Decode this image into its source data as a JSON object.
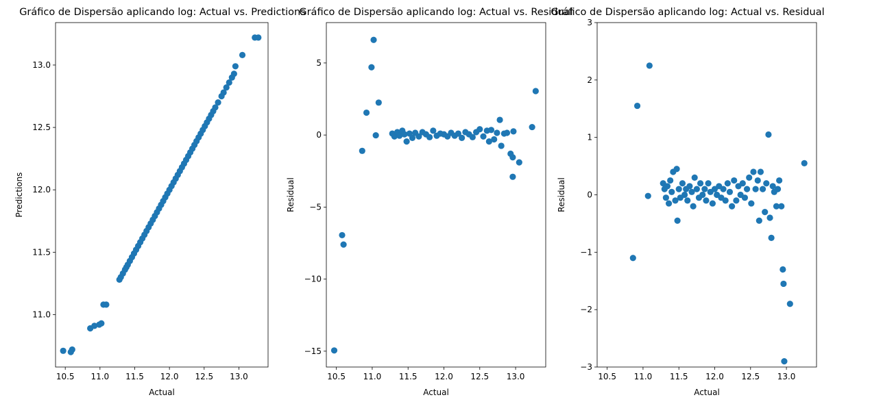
{
  "colors": {
    "marker": "#1f77b4",
    "axes": "#000000",
    "background": "#ffffff"
  },
  "chart_data": [
    {
      "type": "scatter",
      "title": "Gráfico de Dispersão aplicando log: Actual vs. Predictions",
      "xlabel": "Actual",
      "ylabel": "Predictions",
      "xlim": [
        10.36,
        13.42
      ],
      "ylim": [
        10.58,
        13.34
      ],
      "xticks": [
        10.5,
        11.0,
        11.5,
        12.0,
        12.5,
        13.0
      ],
      "xtick_labels": [
        "10.5",
        "11.0",
        "11.5",
        "12.0",
        "12.5",
        "13.0"
      ],
      "yticks": [
        11.0,
        11.5,
        12.0,
        12.5,
        13.0
      ],
      "ytick_labels": [
        "11.0",
        "11.5",
        "12.0",
        "12.5",
        "13.0"
      ],
      "x": [
        10.47,
        10.58,
        10.6,
        10.86,
        10.92,
        10.99,
        11.02,
        11.05,
        11.09,
        11.28,
        11.3,
        11.33,
        11.36,
        11.38,
        11.4,
        11.43,
        11.46,
        11.49,
        11.52,
        11.55,
        11.58,
        11.61,
        11.64,
        11.67,
        11.7,
        11.73,
        11.76,
        11.79,
        11.82,
        11.85,
        11.88,
        11.91,
        11.94,
        11.97,
        12.0,
        12.03,
        12.06,
        12.09,
        12.12,
        12.15,
        12.18,
        12.21,
        12.24,
        12.27,
        12.3,
        12.33,
        12.36,
        12.39,
        12.42,
        12.45,
        12.48,
        12.51,
        12.54,
        12.57,
        12.6,
        12.63,
        12.66,
        12.7,
        12.75,
        12.78,
        12.82,
        12.86,
        12.9,
        12.93,
        12.95,
        13.05,
        13.23,
        13.28
      ],
      "y": [
        10.71,
        10.7,
        10.72,
        10.89,
        10.91,
        10.92,
        10.93,
        11.08,
        11.08,
        11.28,
        11.3,
        11.33,
        11.36,
        11.38,
        11.4,
        11.43,
        11.46,
        11.49,
        11.52,
        11.55,
        11.58,
        11.61,
        11.64,
        11.67,
        11.7,
        11.73,
        11.76,
        11.79,
        11.82,
        11.85,
        11.88,
        11.91,
        11.94,
        11.97,
        12.0,
        12.03,
        12.06,
        12.09,
        12.12,
        12.15,
        12.18,
        12.21,
        12.24,
        12.27,
        12.3,
        12.33,
        12.36,
        12.39,
        12.42,
        12.45,
        12.48,
        12.51,
        12.54,
        12.57,
        12.6,
        12.63,
        12.66,
        12.7,
        12.75,
        12.78,
        12.82,
        12.86,
        12.9,
        12.93,
        12.99,
        13.08,
        13.22,
        13.22
      ]
    },
    {
      "type": "scatter",
      "title": "Gráfico de Dispersão aplicando log: Actual vs. Residual",
      "xlabel": "Actual",
      "ylabel": "Residual",
      "xlim": [
        10.36,
        13.42
      ],
      "ylim": [
        -16.1,
        7.8
      ],
      "xticks": [
        10.5,
        11.0,
        11.5,
        12.0,
        12.5,
        13.0
      ],
      "xtick_labels": [
        "10.5",
        "11.0",
        "11.5",
        "12.0",
        "12.5",
        "13.0"
      ],
      "yticks": [
        -15,
        -10,
        -5,
        0,
        5
      ],
      "ytick_labels": [
        "−15",
        "−10",
        "−5",
        "0",
        "5"
      ],
      "x": [
        10.47,
        10.58,
        10.6,
        10.86,
        10.92,
        10.99,
        11.02,
        11.05,
        11.09,
        11.28,
        11.31,
        11.35,
        11.38,
        11.42,
        11.45,
        11.48,
        11.52,
        11.56,
        11.6,
        11.65,
        11.7,
        11.75,
        11.8,
        11.85,
        11.9,
        11.95,
        12.0,
        12.05,
        12.1,
        12.15,
        12.2,
        12.25,
        12.3,
        12.35,
        12.4,
        12.45,
        12.5,
        12.55,
        12.6,
        12.63,
        12.66,
        12.7,
        12.74,
        12.78,
        12.8,
        12.84,
        12.88,
        12.93,
        12.96,
        12.96,
        12.97,
        13.05,
        13.23,
        13.28
      ],
      "y": [
        -14.95,
        -6.95,
        -7.6,
        -1.1,
        1.55,
        4.7,
        6.6,
        -0.02,
        2.25,
        0.1,
        -0.1,
        0.2,
        -0.05,
        0.3,
        0.05,
        -0.45,
        0.1,
        -0.2,
        0.15,
        -0.1,
        0.2,
        0.05,
        -0.15,
        0.3,
        -0.05,
        0.1,
        0.05,
        -0.1,
        0.15,
        -0.05,
        0.1,
        -0.2,
        0.2,
        0.05,
        -0.15,
        0.2,
        0.4,
        -0.1,
        0.3,
        -0.45,
        0.35,
        -0.3,
        0.15,
        1.05,
        -0.75,
        0.1,
        0.15,
        -1.3,
        -1.55,
        -2.9,
        0.25,
        -1.9,
        0.55,
        3.05
      ]
    },
    {
      "type": "scatter",
      "title": "Gráfico de Dispersão aplicando log: Actual vs. Residual",
      "xlabel": "Actual",
      "ylabel": "Residual",
      "xlim": [
        10.36,
        13.42
      ],
      "ylim": [
        -3,
        3
      ],
      "xticks": [
        10.5,
        11.0,
        11.5,
        12.0,
        12.5,
        13.0
      ],
      "xtick_labels": [
        "10.5",
        "11.0",
        "11.5",
        "12.0",
        "12.5",
        "13.0"
      ],
      "yticks": [
        -3,
        -2,
        -1,
        0,
        1,
        2,
        3
      ],
      "ytick_labels": [
        "−3",
        "−2",
        "−1",
        "0",
        "1",
        "2",
        "3"
      ],
      "x": [
        10.86,
        10.92,
        11.09,
        11.07,
        11.28,
        11.3,
        11.32,
        11.34,
        11.36,
        11.38,
        11.4,
        11.42,
        11.45,
        11.47,
        11.48,
        11.5,
        11.52,
        11.55,
        11.58,
        11.6,
        11.62,
        11.65,
        11.68,
        11.7,
        11.72,
        11.75,
        11.78,
        11.8,
        11.83,
        11.86,
        11.88,
        11.91,
        11.94,
        11.97,
        12.0,
        12.03,
        12.06,
        12.09,
        12.12,
        12.15,
        12.18,
        12.21,
        12.24,
        12.27,
        12.3,
        12.33,
        12.36,
        12.39,
        12.42,
        12.45,
        12.48,
        12.51,
        12.54,
        12.57,
        12.6,
        12.62,
        12.64,
        12.67,
        12.7,
        12.72,
        12.75,
        12.77,
        12.79,
        12.81,
        12.83,
        12.86,
        12.88,
        12.9,
        12.93,
        12.95,
        12.96,
        12.97,
        13.05,
        13.25
      ],
      "y": [
        -1.1,
        1.55,
        2.25,
        -0.02,
        0.2,
        0.1,
        -0.05,
        0.15,
        -0.15,
        0.25,
        0.05,
        0.4,
        -0.1,
        0.45,
        -0.45,
        0.1,
        -0.05,
        0.2,
        0.0,
        0.1,
        -0.1,
        0.15,
        0.05,
        -0.2,
        0.3,
        0.1,
        -0.05,
        0.2,
        0.0,
        0.1,
        -0.1,
        0.2,
        0.05,
        -0.15,
        0.1,
        0.0,
        0.15,
        -0.05,
        0.1,
        -0.1,
        0.2,
        0.05,
        -0.2,
        0.25,
        -0.1,
        0.15,
        0.0,
        0.2,
        -0.05,
        0.1,
        0.3,
        -0.15,
        0.4,
        0.1,
        0.25,
        -0.45,
        0.4,
        0.1,
        -0.3,
        0.2,
        1.05,
        -0.4,
        -0.75,
        0.15,
        0.05,
        -0.2,
        0.1,
        0.25,
        -0.2,
        -1.3,
        -1.55,
        -2.9,
        -1.9,
        0.55
      ]
    }
  ]
}
